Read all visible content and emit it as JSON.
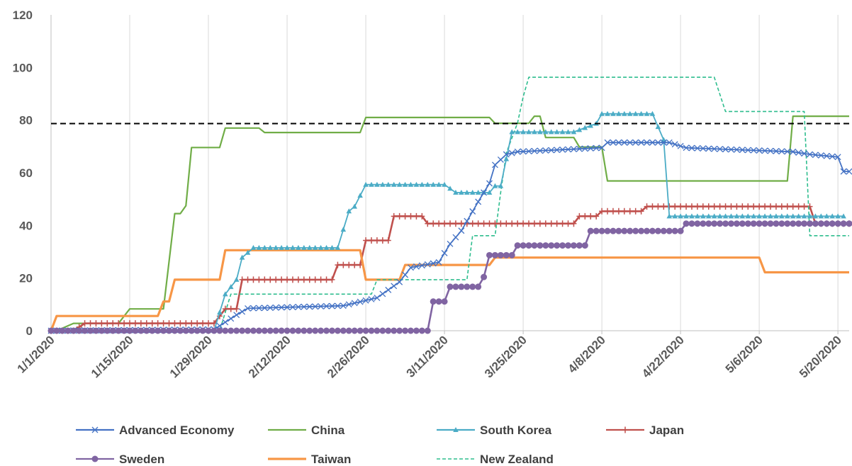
{
  "chart_data": {
    "type": "line",
    "title": "",
    "xlabel": "",
    "ylabel": "",
    "x_range": [
      "1/1/2020",
      "5/22/2020"
    ],
    "ylim": [
      0,
      120
    ],
    "y_ticks": [
      0,
      20,
      40,
      60,
      80,
      100,
      120
    ],
    "x_tick_labels": [
      "1/1/2020",
      "1/15/2020",
      "1/29/2020",
      "2/12/2020",
      "2/26/2020",
      "3/11/2020",
      "3/25/2020",
      "4/8/2020",
      "4/22/2020",
      "5/6/2020",
      "5/20/2020"
    ],
    "grid": "vertical",
    "legend_position": "bottom",
    "reference_line": {
      "y": 78.7,
      "style": "dashed",
      "color": "#000000"
    },
    "series": [
      {
        "name": "Advanced Economy",
        "color": "#4472C4",
        "marker": "x",
        "style": "solid",
        "points": [
          [
            "1/1/2020",
            0
          ],
          [
            "1/30/2020",
            0.5
          ],
          [
            "2/3/2020",
            6
          ],
          [
            "2/5/2020",
            8.5
          ],
          [
            "2/22/2020",
            9.5
          ],
          [
            "2/28/2020",
            12.5
          ],
          [
            "3/3/2020",
            18.5
          ],
          [
            "3/5/2020",
            24
          ],
          [
            "3/10/2020",
            26
          ],
          [
            "3/12/2020",
            33
          ],
          [
            "3/14/2020",
            38
          ],
          [
            "3/17/2020",
            49
          ],
          [
            "3/19/2020",
            56
          ],
          [
            "3/20/2020",
            63
          ],
          [
            "3/22/2020",
            67
          ],
          [
            "3/24/2020",
            68
          ],
          [
            "4/8/2020",
            69.5
          ],
          [
            "4/9/2020",
            71.5
          ],
          [
            "4/20/2020",
            71.5
          ],
          [
            "4/23/2020",
            69.5
          ],
          [
            "5/12/2020",
            68
          ],
          [
            "5/15/2020",
            67
          ],
          [
            "5/20/2020",
            66
          ],
          [
            "5/21/2020",
            60.5
          ],
          [
            "5/22/2020",
            60.5
          ]
        ]
      },
      {
        "name": "China",
        "color": "#70AD47",
        "marker": "none",
        "style": "solid",
        "points": [
          [
            "1/1/2020",
            0
          ],
          [
            "1/2/2020",
            0
          ],
          [
            "1/5/2020",
            2.8
          ],
          [
            "1/13/2020",
            2.8
          ],
          [
            "1/15/2020",
            8.3
          ],
          [
            "1/21/2020",
            8.3
          ],
          [
            "1/23/2020",
            44.5
          ],
          [
            "1/24/2020",
            44.5
          ],
          [
            "1/25/2020",
            47.5
          ],
          [
            "1/26/2020",
            69.6
          ],
          [
            "1/31/2020",
            69.6
          ],
          [
            "2/1/2020",
            77
          ],
          [
            "2/7/2020",
            77
          ],
          [
            "2/8/2020",
            75.3
          ],
          [
            "2/25/2020",
            75.3
          ],
          [
            "2/26/2020",
            81
          ],
          [
            "3/19/2020",
            81
          ],
          [
            "3/20/2020",
            78.8
          ],
          [
            "3/26/2020",
            78.8
          ],
          [
            "3/27/2020",
            81.5
          ],
          [
            "3/28/2020",
            81.5
          ],
          [
            "3/29/2020",
            73.4
          ],
          [
            "4/3/2020",
            73.4
          ],
          [
            "4/4/2020",
            69.8
          ],
          [
            "4/8/2020",
            69.8
          ],
          [
            "4/9/2020",
            56.9
          ],
          [
            "5/11/2020",
            56.9
          ],
          [
            "5/12/2020",
            81.5
          ],
          [
            "5/22/2020",
            81.5
          ]
        ]
      },
      {
        "name": "South Korea",
        "color": "#4BACC6",
        "marker": "triangle",
        "style": "solid",
        "points": [
          [
            "1/1/2020",
            0
          ],
          [
            "1/30/2020",
            0
          ],
          [
            "2/1/2020",
            13.9
          ],
          [
            "2/3/2020",
            19.4
          ],
          [
            "2/4/2020",
            27.8
          ],
          [
            "2/6/2020",
            31.5
          ],
          [
            "2/21/2020",
            31.5
          ],
          [
            "2/23/2020",
            45.4
          ],
          [
            "2/24/2020",
            47.2
          ],
          [
            "2/26/2020",
            55.5
          ],
          [
            "3/11/2020",
            55.5
          ],
          [
            "3/13/2020",
            52.5
          ],
          [
            "3/19/2020",
            52.5
          ],
          [
            "3/20/2020",
            55
          ],
          [
            "3/21/2020",
            55
          ],
          [
            "3/23/2020",
            75.5
          ],
          [
            "4/3/2020",
            75.5
          ],
          [
            "4/7/2020",
            78.7
          ],
          [
            "4/8/2020",
            82.4
          ],
          [
            "4/17/2020",
            82.4
          ],
          [
            "4/19/2020",
            72.5
          ],
          [
            "4/20/2020",
            43.5
          ],
          [
            "5/21/2020",
            43.5
          ]
        ]
      },
      {
        "name": "Japan",
        "color": "#C0504D",
        "marker": "plus",
        "style": "solid",
        "points": [
          [
            "1/1/2020",
            0
          ],
          [
            "1/5/2020",
            0
          ],
          [
            "1/7/2020",
            2.8
          ],
          [
            "1/30/2020",
            2.8
          ],
          [
            "2/1/2020",
            8.3
          ],
          [
            "2/3/2020",
            8.3
          ],
          [
            "2/4/2020",
            19.4
          ],
          [
            "2/20/2020",
            19.4
          ],
          [
            "2/21/2020",
            25
          ],
          [
            "2/25/2020",
            25
          ],
          [
            "2/26/2020",
            34.3
          ],
          [
            "3/1/2020",
            34.3
          ],
          [
            "3/2/2020",
            43.5
          ],
          [
            "3/7/2020",
            43.5
          ],
          [
            "3/8/2020",
            40.7
          ],
          [
            "4/3/2020",
            40.7
          ],
          [
            "4/4/2020",
            43.5
          ],
          [
            "4/7/2020",
            43.5
          ],
          [
            "4/8/2020",
            45.4
          ],
          [
            "4/15/2020",
            45.4
          ],
          [
            "4/16/2020",
            47.2
          ],
          [
            "5/15/2020",
            47.2
          ],
          [
            "5/16/2020",
            40.7
          ],
          [
            "5/22/2020",
            40.7
          ]
        ]
      },
      {
        "name": "Sweden",
        "color": "#8064A2",
        "marker": "circle",
        "style": "solid",
        "points": [
          [
            "1/1/2020",
            0
          ],
          [
            "3/8/2020",
            0
          ],
          [
            "3/9/2020",
            11.1
          ],
          [
            "3/11/2020",
            11.1
          ],
          [
            "3/12/2020",
            16.7
          ],
          [
            "3/17/2020",
            16.7
          ],
          [
            "3/18/2020",
            20.4
          ],
          [
            "3/19/2020",
            28.7
          ],
          [
            "3/23/2020",
            28.7
          ],
          [
            "3/24/2020",
            32.4
          ],
          [
            "4/5/2020",
            32.4
          ],
          [
            "4/6/2020",
            37.9
          ],
          [
            "4/22/2020",
            37.9
          ],
          [
            "4/23/2020",
            40.7
          ],
          [
            "5/22/2020",
            40.7
          ]
        ]
      },
      {
        "name": "Taiwan",
        "color": "#F79646",
        "marker": "none",
        "style": "solid",
        "points": [
          [
            "1/1/2020",
            0
          ],
          [
            "1/2/2020",
            5.6
          ],
          [
            "1/20/2020",
            5.6
          ],
          [
            "1/21/2020",
            11.1
          ],
          [
            "1/22/2020",
            11.1
          ],
          [
            "1/23/2020",
            19.4
          ],
          [
            "1/31/2020",
            19.4
          ],
          [
            "2/1/2020",
            30.6
          ],
          [
            "2/25/2020",
            30.6
          ],
          [
            "2/26/2020",
            19.4
          ],
          [
            "3/3/2020",
            19.4
          ],
          [
            "3/4/2020",
            25
          ],
          [
            "3/19/2020",
            25
          ],
          [
            "3/20/2020",
            27.8
          ],
          [
            "5/6/2020",
            27.8
          ],
          [
            "5/7/2020",
            22.2
          ],
          [
            "5/22/2020",
            22.2
          ]
        ]
      },
      {
        "name": "New Zealand",
        "color": "#2EBD8E",
        "marker": "none",
        "style": "dashed",
        "points": [
          [
            "1/1/2020",
            0
          ],
          [
            "1/31/2020",
            0
          ],
          [
            "2/2/2020",
            13.9
          ],
          [
            "2/27/2020",
            13.9
          ],
          [
            "2/28/2020",
            19.4
          ],
          [
            "3/15/2020",
            19.4
          ],
          [
            "3/16/2020",
            36.1
          ],
          [
            "3/20/2020",
            36.1
          ],
          [
            "3/21/2020",
            52.6
          ],
          [
            "3/22/2020",
            67.5
          ],
          [
            "3/24/2020",
            79
          ],
          [
            "3/25/2020",
            88.9
          ],
          [
            "3/26/2020",
            96.3
          ],
          [
            "4/28/2020",
            96.3
          ],
          [
            "4/30/2020",
            83.3
          ],
          [
            "5/14/2020",
            83.3
          ],
          [
            "5/15/2020",
            36.1
          ],
          [
            "5/22/2020",
            36.1
          ]
        ]
      }
    ]
  }
}
